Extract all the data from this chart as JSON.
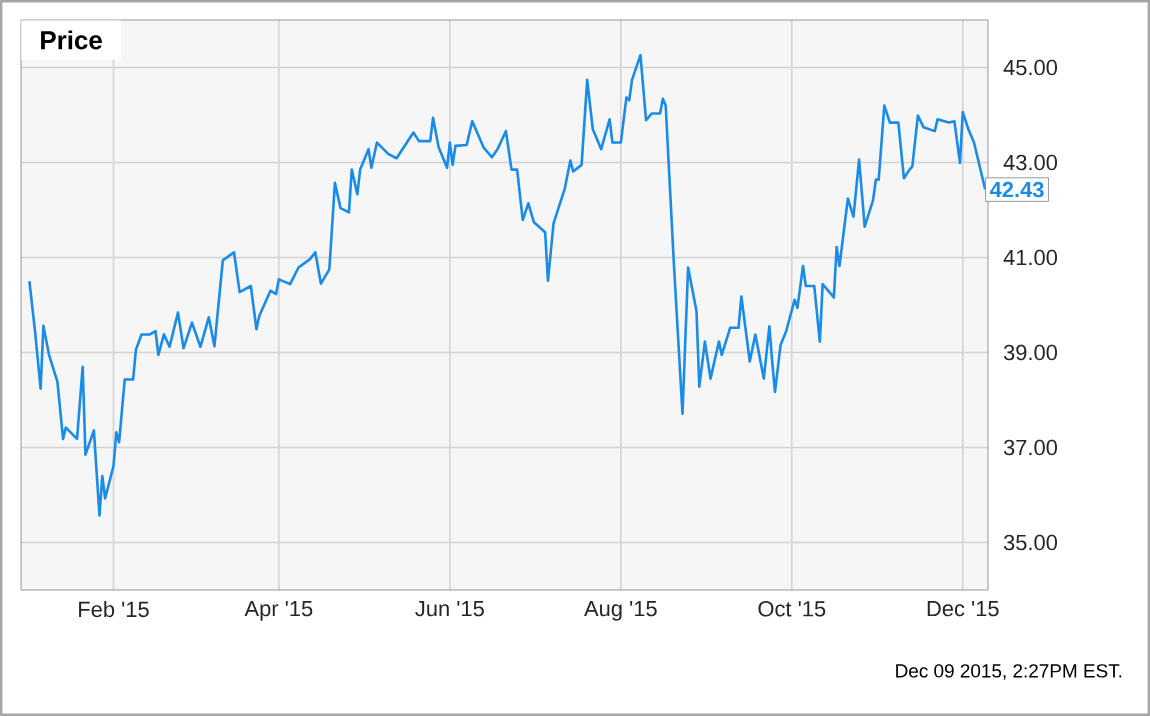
{
  "chart_data": {
    "type": "line",
    "title": "Price",
    "color": "#1a8be6",
    "grid": true,
    "marker": "none",
    "line_style": "solid",
    "xlim": [
      "2014-12-30",
      "2015-12-10"
    ],
    "xticks": [
      {
        "value": "2015-02-01",
        "label": "Feb '15"
      },
      {
        "value": "2015-04-01",
        "label": "Apr '15"
      },
      {
        "value": "2015-06-01",
        "label": "Jun '15"
      },
      {
        "value": "2015-08-01",
        "label": "Aug '15"
      },
      {
        "value": "2015-10-01",
        "label": "Oct '15"
      },
      {
        "value": "2015-12-01",
        "label": "Dec '15"
      }
    ],
    "ylim": [
      34,
      46
    ],
    "yticks": [
      {
        "value": 35,
        "label": "35.00"
      },
      {
        "value": 37,
        "label": "37.00"
      },
      {
        "value": 39,
        "label": "39.00"
      },
      {
        "value": 41,
        "label": "41.00"
      },
      {
        "value": 43,
        "label": "43.00"
      },
      {
        "value": 45,
        "label": "45.00"
      }
    ],
    "x": [
      "2015-01-02",
      "2015-01-04",
      "2015-01-06",
      "2015-01-07",
      "2015-01-09",
      "2015-01-12",
      "2015-01-14",
      "2015-01-15",
      "2015-01-19",
      "2015-01-21",
      "2015-01-22",
      "2015-01-25",
      "2015-01-27",
      "2015-01-28",
      "2015-01-29",
      "2015-02-01",
      "2015-02-02",
      "2015-02-03",
      "2015-02-05",
      "2015-02-08",
      "2015-02-09",
      "2015-02-11",
      "2015-02-14",
      "2015-02-16",
      "2015-02-17",
      "2015-02-19",
      "2015-02-21",
      "2015-02-24",
      "2015-02-26",
      "2015-03-01",
      "2015-03-04",
      "2015-03-07",
      "2015-03-09",
      "2015-03-12",
      "2015-03-16",
      "2015-03-18",
      "2015-03-22",
      "2015-03-24",
      "2015-03-25",
      "2015-03-29",
      "2015-03-31",
      "2015-04-01",
      "2015-04-05",
      "2015-04-08",
      "2015-04-12",
      "2015-04-14",
      "2015-04-16",
      "2015-04-19",
      "2015-04-21",
      "2015-04-23",
      "2015-04-26",
      "2015-04-27",
      "2015-04-29",
      "2015-04-30",
      "2015-05-03",
      "2015-05-04",
      "2015-05-06",
      "2015-05-10",
      "2015-05-13",
      "2015-05-19",
      "2015-05-21",
      "2015-05-25",
      "2015-05-26",
      "2015-05-28",
      "2015-05-31",
      "2015-06-01",
      "2015-06-02",
      "2015-06-03",
      "2015-06-07",
      "2015-06-09",
      "2015-06-13",
      "2015-06-16",
      "2015-06-18",
      "2015-06-21",
      "2015-06-23",
      "2015-06-25",
      "2015-06-27",
      "2015-06-29",
      "2015-07-01",
      "2015-07-05",
      "2015-07-06",
      "2015-07-08",
      "2015-07-12",
      "2015-07-14",
      "2015-07-15",
      "2015-07-18",
      "2015-07-20",
      "2015-07-22",
      "2015-07-25",
      "2015-07-28",
      "2015-07-29",
      "2015-08-01",
      "2015-08-03",
      "2015-08-04",
      "2015-08-05",
      "2015-08-08",
      "2015-08-10",
      "2015-08-12",
      "2015-08-15",
      "2015-08-16",
      "2015-08-17",
      "2015-08-20",
      "2015-08-23",
      "2015-08-25",
      "2015-08-28",
      "2015-08-29",
      "2015-08-31",
      "2015-09-02",
      "2015-09-05",
      "2015-09-06",
      "2015-09-09",
      "2015-09-12",
      "2015-09-13",
      "2015-09-16",
      "2015-09-18",
      "2015-09-21",
      "2015-09-23",
      "2015-09-24",
      "2015-09-25",
      "2015-09-27",
      "2015-09-29",
      "2015-10-02",
      "2015-10-03",
      "2015-10-05",
      "2015-10-06",
      "2015-10-09",
      "2015-10-11",
      "2015-10-12",
      "2015-10-16",
      "2015-10-17",
      "2015-10-18",
      "2015-10-21",
      "2015-10-23",
      "2015-10-25",
      "2015-10-27",
      "2015-10-30",
      "2015-10-31",
      "2015-11-01",
      "2015-11-03",
      "2015-11-05",
      "2015-11-08",
      "2015-11-10",
      "2015-11-12",
      "2015-11-13",
      "2015-11-15",
      "2015-11-17",
      "2015-11-21",
      "2015-11-22",
      "2015-11-26",
      "2015-11-28",
      "2015-11-30",
      "2015-12-01",
      "2015-12-03",
      "2015-12-05",
      "2015-12-09"
    ],
    "values": [
      40.5,
      39.45,
      38.24,
      39.56,
      38.95,
      38.38,
      37.18,
      37.42,
      37.18,
      38.7,
      36.85,
      37.36,
      35.57,
      36.4,
      35.93,
      36.61,
      37.32,
      37.11,
      38.43,
      38.43,
      39.06,
      39.38,
      39.38,
      39.45,
      38.95,
      39.38,
      39.12,
      39.84,
      39.09,
      39.63,
      39.12,
      39.74,
      39.13,
      40.94,
      41.11,
      40.27,
      40.4,
      39.49,
      39.77,
      40.3,
      40.23,
      40.54,
      40.44,
      40.79,
      40.96,
      41.11,
      40.45,
      40.75,
      42.57,
      42.04,
      41.95,
      42.85,
      42.33,
      42.85,
      43.28,
      42.89,
      43.42,
      43.18,
      43.09,
      43.63,
      43.45,
      43.45,
      43.94,
      43.32,
      42.89,
      43.42,
      42.95,
      43.35,
      43.37,
      43.87,
      43.32,
      43.11,
      43.28,
      43.66,
      42.85,
      42.85,
      41.79,
      42.14,
      41.74,
      41.53,
      40.51,
      41.72,
      42.45,
      43.04,
      42.81,
      42.95,
      44.74,
      43.7,
      43.28,
      43.91,
      43.42,
      43.42,
      44.37,
      44.31,
      44.74,
      45.26,
      43.89,
      44.03,
      44.03,
      44.34,
      44.2,
      40.79,
      37.71,
      40.79,
      39.87,
      38.28,
      39.23,
      38.45,
      39.23,
      38.95,
      39.52,
      39.52,
      40.18,
      38.81,
      39.38,
      38.45,
      39.55,
      38.81,
      38.17,
      39.16,
      39.45,
      40.11,
      39.94,
      40.82,
      40.4,
      40.4,
      39.23,
      40.44,
      40.16,
      41.22,
      40.82,
      42.24,
      41.86,
      43.06,
      41.65,
      42.21,
      42.64,
      42.64,
      44.2,
      43.84,
      43.84,
      42.67,
      42.85,
      42.92,
      43.99,
      43.74,
      43.66,
      43.91,
      43.84,
      43.87,
      42.99,
      44.06,
      43.7,
      43.42,
      42.43
    ],
    "annotations": [
      {
        "text": "42.43",
        "x": "2015-12-09",
        "y": 42.43
      },
      "Dec 09 2015, 2:27PM EST."
    ]
  }
}
